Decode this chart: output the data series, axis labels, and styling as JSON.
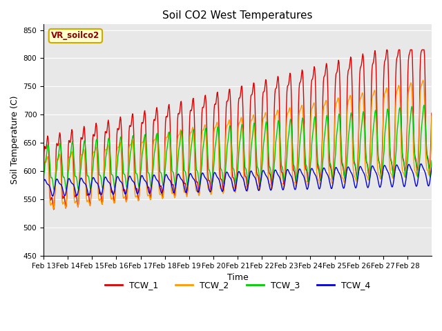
{
  "title": "Soil CO2 West Temperatures",
  "xlabel": "Time",
  "ylabel": "Soil Temperature (C)",
  "ylim": [
    450,
    860
  ],
  "yticks": [
    450,
    500,
    550,
    600,
    650,
    700,
    750,
    800,
    850
  ],
  "xtick_labels": [
    "Feb 13",
    "Feb 14",
    "Feb 15",
    "Feb 16",
    "Feb 17",
    "Feb 18",
    "Feb 19",
    "Feb 20",
    "Feb 21",
    "Feb 22",
    "Feb 23",
    "Feb 24",
    "Feb 25",
    "Feb 26",
    "Feb 27",
    "Feb 28"
  ],
  "legend_label": "VR_soilco2",
  "series_labels": [
    "TCW_1",
    "TCW_2",
    "TCW_3",
    "TCW_4"
  ],
  "colors": [
    "#dd0000",
    "#ff9900",
    "#00cc00",
    "#0000dd"
  ],
  "background_color": "#e8e8e8",
  "title_fontsize": 11,
  "axis_label_fontsize": 9,
  "tick_fontsize": 7.5,
  "n_days": 16
}
